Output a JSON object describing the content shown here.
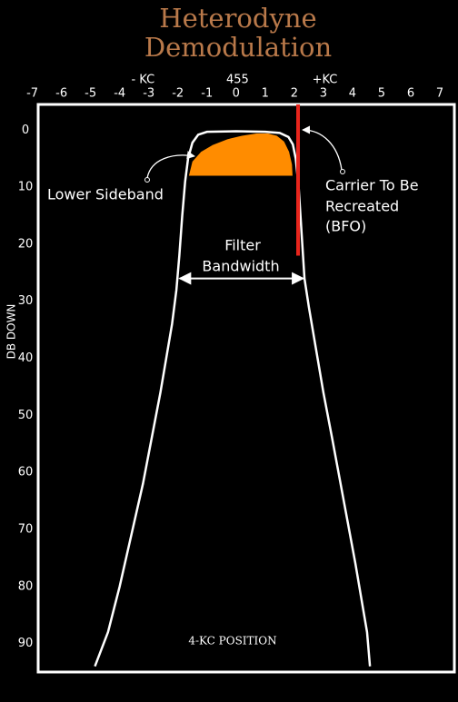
{
  "chart_data": {
    "type": "line",
    "title": "Heterodyne Demodulation",
    "ylabel": "DB DOWN",
    "xlim": [
      -6.8,
      7.5
    ],
    "ylim": [
      -4.5,
      95
    ],
    "y_inverted": true,
    "xticks": [
      -7,
      -6,
      -5,
      -4,
      -3,
      -2,
      -1,
      0,
      1,
      2,
      3,
      4,
      5,
      6,
      7
    ],
    "yticks": [
      0,
      10,
      20,
      30,
      40,
      50,
      60,
      70,
      80,
      90
    ],
    "top_labels": [
      {
        "x": -3.2,
        "text": "- KC"
      },
      {
        "x": 0.05,
        "text": "455"
      },
      {
        "x": 3.05,
        "text": "+KC"
      }
    ],
    "series": [
      {
        "color": "#ffffff",
        "x": [
          -4.85,
          -4.4,
          -4.0,
          -3.6,
          -3.2,
          -2.9,
          -2.6,
          -2.4,
          -2.2,
          -2.05,
          -1.95,
          -1.85,
          -1.75,
          -1.65,
          -1.5,
          -1.3,
          -1.0,
          0,
          1.0,
          1.5,
          1.8,
          1.95,
          2.05,
          2.15,
          2.25,
          2.35,
          2.5,
          2.7,
          3.0,
          3.3,
          3.7,
          4.1,
          4.5,
          4.6
        ],
        "values": [
          94,
          88,
          80,
          71,
          62,
          54,
          46,
          40,
          34,
          28,
          22,
          15,
          9,
          5,
          2.2,
          0.8,
          0.3,
          0.2,
          0.3,
          0.5,
          1.2,
          2.5,
          5,
          10,
          18,
          26,
          31,
          37,
          46,
          54,
          65,
          76,
          88,
          94
        ]
      }
    ],
    "sideband": {
      "color": "#ff8c00",
      "x": [
        -1.62,
        -1.5,
        -1.2,
        -0.8,
        -0.3,
        0.2,
        0.7,
        1.1,
        1.4,
        1.65,
        1.82,
        1.92,
        1.94,
        -1.62
      ],
      "values": [
        8,
        5.5,
        3.8,
        2.6,
        1.6,
        1.0,
        0.6,
        0.6,
        1.0,
        2.0,
        3.8,
        6,
        8,
        8
      ]
    },
    "carrier": {
      "color": "#e8251c",
      "x": [
        2.13,
        2.13
      ],
      "values": [
        -4.5,
        22
      ]
    },
    "bandwidth_arrow": {
      "x": [
        -2.0,
        2.37
      ],
      "y": 26
    },
    "annotations": {
      "lower_sideband": "Lower Sideband",
      "carrier": [
        "Carrier To Be",
        "Recreated",
        "(BFO)"
      ],
      "filter_bandwidth": [
        "Filter",
        "Bandwidth"
      ],
      "position": "4-KC POSITION"
    }
  }
}
